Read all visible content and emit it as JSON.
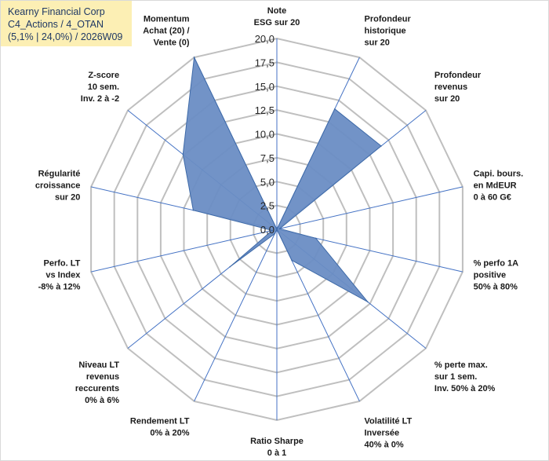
{
  "info": {
    "line1": "Kearny Financial Corp",
    "line2": "C4_Actions / 4_OTAN",
    "line3": "(5,1% | 24,0%) / 2026W09"
  },
  "colors": {
    "fill": "#6a8dc4",
    "stroke": "#3e6aa8",
    "grid": "#bfbfbf",
    "spoke": "#4472c4",
    "info_bg": "#fcefb4"
  },
  "chart_data": {
    "type": "radar",
    "title": "",
    "rmin": 0,
    "rmax": 20,
    "ticks": [
      "0,0",
      "2,5",
      "5,0",
      "7,5",
      "10,0",
      "12,5",
      "15,0",
      "17,5",
      "20,0"
    ],
    "categories": [
      [
        "Note",
        "ESG sur 20"
      ],
      [
        "Profondeur",
        "historique",
        "sur 20"
      ],
      [
        "Profondeur",
        "revenus",
        "sur 20"
      ],
      [
        "Capi. bours.",
        "en MdEUR",
        "0 à 60 G€"
      ],
      [
        "% perfo 1A",
        "positive",
        "50% à 80%"
      ],
      [
        "% perte max.",
        "sur 1 sem.",
        "Inv. 50% à 20%"
      ],
      [
        "Volatilité LT",
        "Inversée",
        "40% à 0%"
      ],
      [
        "Ratio Sharpe",
        "0 à 1"
      ],
      [
        "Rendement LT",
        "0% à 20%"
      ],
      [
        "Niveau LT",
        "revenus",
        "reccurents",
        "0% à 6%"
      ],
      [
        "Perfo. LT",
        "vs Index",
        "-8% à 12%"
      ],
      [
        "Régularité",
        "croissance",
        "sur 20"
      ],
      [
        "Z-score",
        "10 sem.",
        "Inv. 2 à -2"
      ],
      [
        "Momentum",
        "Achat (20) /",
        "Vente (0)"
      ]
    ],
    "series": [
      {
        "name": "Kearny Financial Corp",
        "values": [
          0,
          14,
          14,
          0.3,
          4.2,
          12.2,
          3.6,
          0,
          0.5,
          6.3,
          0.5,
          9,
          12.6,
          20
        ]
      }
    ]
  }
}
